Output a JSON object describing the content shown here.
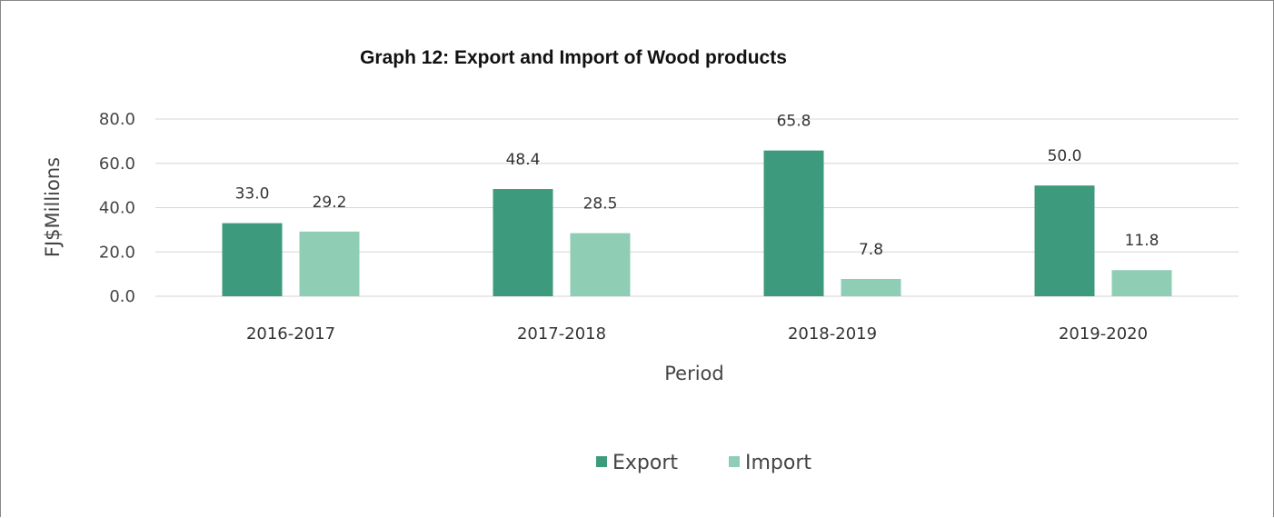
{
  "chart_data": {
    "type": "bar",
    "title": "Graph 12: Export and Import of Wood products",
    "xlabel": "Period",
    "ylabel": "FJ$Millions",
    "categories": [
      "2016-2017",
      "2017-2018",
      "2018-2019",
      "2019-2020"
    ],
    "series": [
      {
        "name": "Export",
        "values": [
          33.0,
          48.4,
          65.8,
          50.0
        ],
        "labels": [
          "33.0",
          "48.4",
          "65.8",
          "50.0"
        ],
        "color": "#3e9a7c"
      },
      {
        "name": "Import",
        "values": [
          29.2,
          28.5,
          7.8,
          11.8
        ],
        "labels": [
          "29.2",
          "28.5",
          "7.8",
          "11.8"
        ],
        "color": "#8fcdb5"
      }
    ],
    "ylim": [
      0,
      80
    ],
    "yticks": [
      "0.0",
      "20.0",
      "40.0",
      "60.0",
      "80.0"
    ],
    "grid": true,
    "legend": "bottom"
  }
}
